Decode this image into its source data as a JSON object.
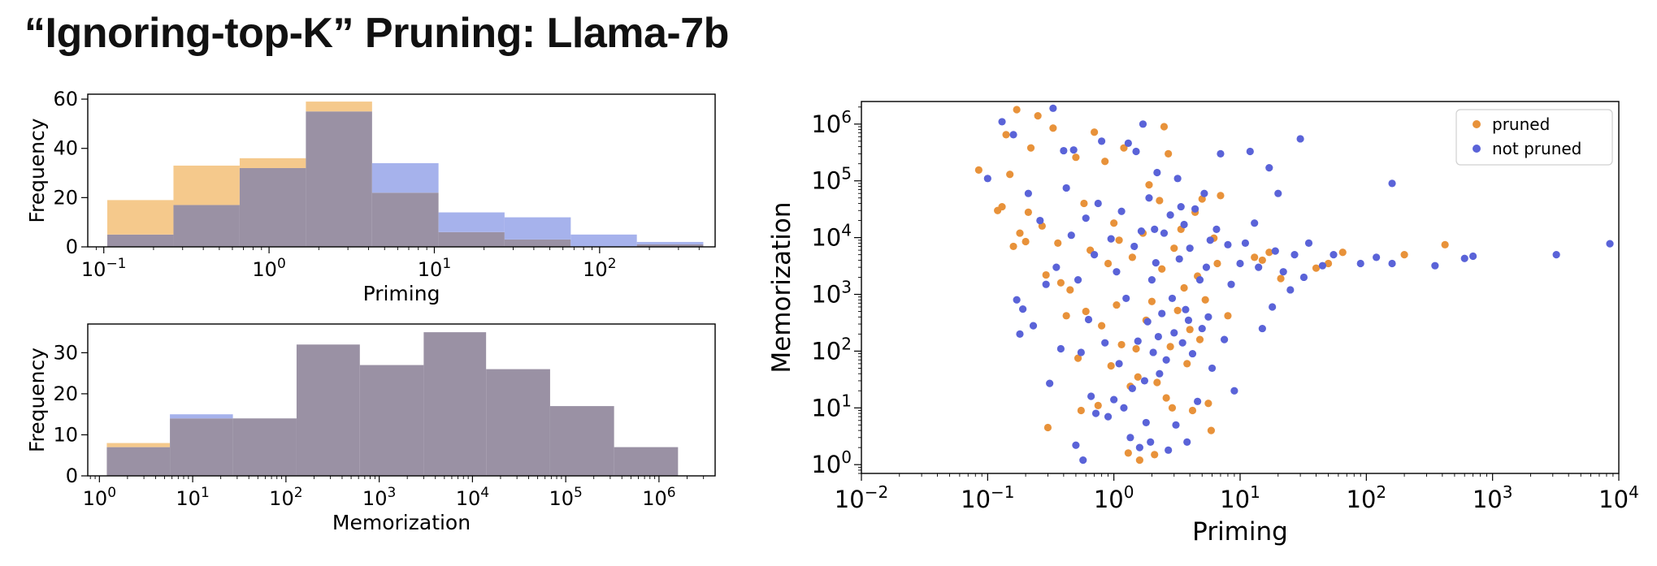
{
  "slide": {
    "title": "“Ignoring-top-K” Pruning: Llama-7b"
  },
  "colors": {
    "pruned_hist": "#f5c98c",
    "not_pruned_hist": "#a6b2ec",
    "overlap_hist": "#9a91a4",
    "pruned_scatter": "#e8923a",
    "not_pruned_scatter": "#5a63d8"
  },
  "chart_data": [
    {
      "id": "priming-hist",
      "type": "bar",
      "subtype": "histogram",
      "xscale": "log",
      "xlabel": "Priming",
      "ylabel": "Frequency",
      "xlim": [
        0.08,
        500
      ],
      "ylim": [
        0,
        62
      ],
      "yticks": [
        0,
        20,
        40,
        60
      ],
      "xticks": [
        {
          "exp": 0.1,
          "base": "10",
          "sup": "−1"
        },
        {
          "exp": 1,
          "base": "10",
          "sup": "0"
        },
        {
          "exp": 10,
          "base": "10",
          "sup": "1"
        },
        {
          "exp": 100,
          "base": "10",
          "sup": "2"
        }
      ],
      "bin_edges": [
        0.105,
        0.264,
        0.664,
        1.67,
        4.2,
        10.6,
        26.6,
        66.9,
        168,
        424
      ],
      "series": [
        {
          "name": "pruned",
          "values": [
            19,
            33,
            36,
            59,
            22,
            6,
            3,
            0,
            1
          ]
        },
        {
          "name": "not pruned",
          "values": [
            5,
            17,
            32,
            55,
            34,
            14,
            12,
            5,
            2
          ]
        }
      ]
    },
    {
      "id": "memorization-hist",
      "type": "bar",
      "subtype": "histogram",
      "xscale": "log",
      "xlabel": "Memorization",
      "ylabel": "Frequency",
      "xlim": [
        0.75,
        4000000
      ],
      "ylim": [
        0,
        37
      ],
      "yticks": [
        0,
        10,
        20,
        30
      ],
      "xticks": [
        {
          "exp": 1,
          "base": "10",
          "sup": "0"
        },
        {
          "exp": 10,
          "base": "10",
          "sup": "1"
        },
        {
          "exp": 100,
          "base": "10",
          "sup": "2"
        },
        {
          "exp": 1000,
          "base": "10",
          "sup": "3"
        },
        {
          "exp": 10000,
          "base": "10",
          "sup": "4"
        },
        {
          "exp": 100000,
          "base": "10",
          "sup": "5"
        },
        {
          "exp": 1000000,
          "base": "10",
          "sup": "6"
        }
      ],
      "bin_edges": [
        1.2,
        5.7,
        27,
        130,
        620,
        3000,
        14000,
        68000,
        330000,
        1600000
      ],
      "series": [
        {
          "name": "pruned",
          "values": [
            8,
            14,
            14,
            32,
            27,
            35,
            26,
            17,
            7
          ]
        },
        {
          "name": "not pruned",
          "values": [
            7,
            15,
            14,
            32,
            27,
            35,
            26,
            17,
            7
          ]
        }
      ]
    },
    {
      "id": "priming-vs-memorization",
      "type": "scatter",
      "xscale": "log",
      "yscale": "log",
      "xlabel": "Priming",
      "ylabel": "Memorization",
      "xlim": [
        0.01,
        10000
      ],
      "ylim": [
        0.7,
        2500000
      ],
      "xticks": [
        {
          "exp": 0.01,
          "base": "10",
          "sup": "−2"
        },
        {
          "exp": 0.1,
          "base": "10",
          "sup": "−1"
        },
        {
          "exp": 1,
          "base": "10",
          "sup": "0"
        },
        {
          "exp": 10,
          "base": "10",
          "sup": "1"
        },
        {
          "exp": 100,
          "base": "10",
          "sup": "2"
        },
        {
          "exp": 1000,
          "base": "10",
          "sup": "3"
        },
        {
          "exp": 10000,
          "base": "10",
          "sup": "4"
        }
      ],
      "yticks": [
        {
          "exp": 1,
          "base": "10",
          "sup": "0"
        },
        {
          "exp": 10,
          "base": "10",
          "sup": "1"
        },
        {
          "exp": 100,
          "base": "10",
          "sup": "2"
        },
        {
          "exp": 1000,
          "base": "10",
          "sup": "3"
        },
        {
          "exp": 10000,
          "base": "10",
          "sup": "4"
        },
        {
          "exp": 100000,
          "base": "10",
          "sup": "5"
        },
        {
          "exp": 1000000,
          "base": "10",
          "sup": "6"
        }
      ],
      "legend_position": "top-right",
      "series": [
        {
          "name": "pruned",
          "points": [
            [
              0.085,
              155000
            ],
            [
              0.12,
              30000
            ],
            [
              0.13,
              35000
            ],
            [
              0.14,
              650000
            ],
            [
              0.15,
              130000
            ],
            [
              0.16,
              7000
            ],
            [
              0.17,
              1800000
            ],
            [
              0.18,
              12000
            ],
            [
              0.2,
              8500
            ],
            [
              0.21,
              28000
            ],
            [
              0.22,
              380000
            ],
            [
              0.25,
              1400000
            ],
            [
              0.27,
              16000
            ],
            [
              0.29,
              2200
            ],
            [
              0.3,
              4.5
            ],
            [
              0.33,
              850000
            ],
            [
              0.36,
              8000
            ],
            [
              0.38,
              1600
            ],
            [
              0.42,
              420
            ],
            [
              0.45,
              1200
            ],
            [
              0.5,
              260000
            ],
            [
              0.52,
              75
            ],
            [
              0.55,
              9
            ],
            [
              0.58,
              40000
            ],
            [
              0.6,
              500
            ],
            [
              0.65,
              6000
            ],
            [
              0.7,
              720000
            ],
            [
              0.75,
              11
            ],
            [
              0.8,
              280
            ],
            [
              0.85,
              220000
            ],
            [
              0.9,
              3500
            ],
            [
              0.95,
              55
            ],
            [
              1.0,
              18000
            ],
            [
              1.05,
              650
            ],
            [
              1.1,
              9000
            ],
            [
              1.15,
              130
            ],
            [
              1.2,
              380000
            ],
            [
              1.3,
              1.6
            ],
            [
              1.35,
              24
            ],
            [
              1.4,
              4500
            ],
            [
              1.5,
              110
            ],
            [
              1.55,
              35
            ],
            [
              1.6,
              1.2
            ],
            [
              1.7,
              12000
            ],
            [
              1.8,
              350
            ],
            [
              1.9,
              85000
            ],
            [
              2.0,
              750
            ],
            [
              2.1,
              1.5
            ],
            [
              2.2,
              28
            ],
            [
              2.3,
              45000
            ],
            [
              2.4,
              2800
            ],
            [
              2.5,
              900000
            ],
            [
              2.6,
              15
            ],
            [
              2.7,
              300000
            ],
            [
              2.8,
              120
            ],
            [
              2.9,
              10
            ],
            [
              3.0,
              6500
            ],
            [
              3.2,
              520
            ],
            [
              3.4,
              14000
            ],
            [
              3.6,
              1300
            ],
            [
              3.8,
              60
            ],
            [
              4.0,
              240
            ],
            [
              4.2,
              9
            ],
            [
              4.4,
              28000
            ],
            [
              4.6,
              2100
            ],
            [
              4.8,
              160
            ],
            [
              5.0,
              48000
            ],
            [
              5.3,
              800
            ],
            [
              5.6,
              12
            ],
            [
              5.9,
              4
            ],
            [
              6.2,
              9800
            ],
            [
              6.6,
              3500
            ],
            [
              7.0,
              55000
            ],
            [
              8.0,
              420
            ],
            [
              13,
              4500
            ],
            [
              15,
              4000
            ],
            [
              17,
              5500
            ],
            [
              21,
              1900
            ],
            [
              40,
              2900
            ],
            [
              50,
              3500
            ],
            [
              65,
              5500
            ],
            [
              200,
              5000
            ],
            [
              420,
              7500
            ]
          ]
        },
        {
          "name": "not pruned",
          "points": [
            [
              0.1,
              110000
            ],
            [
              0.13,
              1100000
            ],
            [
              0.16,
              650000
            ],
            [
              0.17,
              800
            ],
            [
              0.18,
              200
            ],
            [
              0.19,
              550
            ],
            [
              0.21,
              60000
            ],
            [
              0.23,
              280
            ],
            [
              0.26,
              20000
            ],
            [
              0.29,
              1500
            ],
            [
              0.31,
              27
            ],
            [
              0.33,
              1900000
            ],
            [
              0.35,
              3000
            ],
            [
              0.38,
              110
            ],
            [
              0.4,
              340000
            ],
            [
              0.42,
              75000
            ],
            [
              0.46,
              11000
            ],
            [
              0.48,
              350000
            ],
            [
              0.5,
              2.2
            ],
            [
              0.52,
              1800
            ],
            [
              0.55,
              95
            ],
            [
              0.57,
              1.2
            ],
            [
              0.6,
              22000
            ],
            [
              0.63,
              360
            ],
            [
              0.66,
              16
            ],
            [
              0.7,
              5000
            ],
            [
              0.72,
              8
            ],
            [
              0.75,
              40000
            ],
            [
              0.8,
              500000
            ],
            [
              0.85,
              140
            ],
            [
              0.9,
              7
            ],
            [
              0.95,
              9500
            ],
            [
              1.0,
              14
            ],
            [
              1.05,
              2500
            ],
            [
              1.1,
              60
            ],
            [
              1.15,
              29000
            ],
            [
              1.2,
              10
            ],
            [
              1.25,
              850
            ],
            [
              1.3,
              460000
            ],
            [
              1.35,
              3
            ],
            [
              1.4,
              22
            ],
            [
              1.45,
              7000
            ],
            [
              1.5,
              330000
            ],
            [
              1.55,
              150
            ],
            [
              1.6,
              2
            ],
            [
              1.65,
              13000
            ],
            [
              1.7,
              1000000
            ],
            [
              1.75,
              30
            ],
            [
              1.8,
              5.5
            ],
            [
              1.85,
              330
            ],
            [
              1.9,
              50000
            ],
            [
              1.95,
              2.5
            ],
            [
              2.0,
              1800
            ],
            [
              2.05,
              95
            ],
            [
              2.1,
              14000
            ],
            [
              2.15,
              3600
            ],
            [
              2.2,
              140000
            ],
            [
              2.25,
              180
            ],
            [
              2.3,
              40
            ],
            [
              2.4,
              460
            ],
            [
              2.5,
              12000
            ],
            [
              2.6,
              70
            ],
            [
              2.7,
              1.8
            ],
            [
              2.8,
              25000
            ],
            [
              2.9,
              850
            ],
            [
              3.0,
              210
            ],
            [
              3.1,
              5
            ],
            [
              3.2,
              110000
            ],
            [
              3.3,
              4200
            ],
            [
              3.4,
              35000
            ],
            [
              3.5,
              140
            ],
            [
              3.6,
              17000
            ],
            [
              3.7,
              540
            ],
            [
              3.8,
              2.5
            ],
            [
              3.9,
              350
            ],
            [
              4.0,
              6500
            ],
            [
              4.2,
              90
            ],
            [
              4.4,
              32000
            ],
            [
              4.6,
              13
            ],
            [
              4.8,
              1800
            ],
            [
              5.0,
              250
            ],
            [
              5.2,
              60000
            ],
            [
              5.4,
              3000
            ],
            [
              5.6,
              400
            ],
            [
              5.8,
              9000
            ],
            [
              6.0,
              50
            ],
            [
              6.5,
              14000
            ],
            [
              7.0,
              300000
            ],
            [
              7.5,
              160
            ],
            [
              8.0,
              7500
            ],
            [
              8.5,
              1500
            ],
            [
              9.0,
              20
            ],
            [
              10,
              3500
            ],
            [
              11,
              8000
            ],
            [
              12,
              330000
            ],
            [
              13,
              18000
            ],
            [
              14,
              3000
            ],
            [
              15,
              250
            ],
            [
              17,
              170000
            ],
            [
              18,
              600
            ],
            [
              19,
              5800
            ],
            [
              20,
              60000
            ],
            [
              22,
              2500
            ],
            [
              25,
              1200
            ],
            [
              27,
              5000
            ],
            [
              30,
              550000
            ],
            [
              32,
              2000
            ],
            [
              35,
              8000
            ],
            [
              45,
              3200
            ],
            [
              55,
              5000
            ],
            [
              90,
              3500
            ],
            [
              120,
              4500
            ],
            [
              160,
              3500
            ],
            [
              160,
              90000
            ],
            [
              350,
              3200
            ],
            [
              600,
              4300
            ],
            [
              700,
              4700
            ],
            [
              3200,
              5000
            ],
            [
              8500,
              7800
            ]
          ]
        }
      ]
    }
  ]
}
